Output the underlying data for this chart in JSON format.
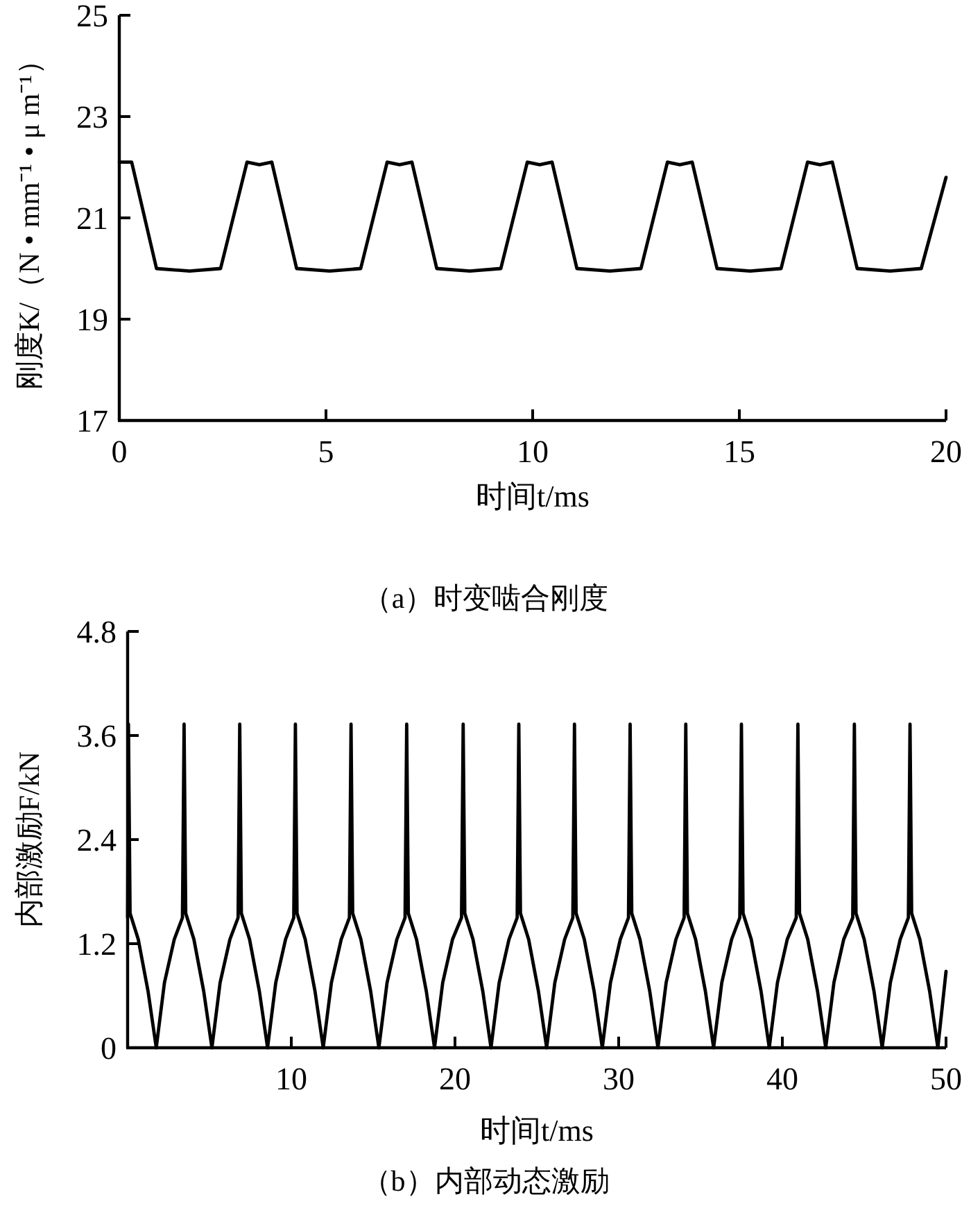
{
  "chart_data": [
    {
      "type": "line",
      "xlabel": "时间t/ms",
      "ylabel": "刚度K/（N • mm⁻¹ • μ m⁻¹）",
      "annotations": [
        "（a）时变啮合刚度"
      ],
      "xlim": [
        0,
        20
      ],
      "ylim": [
        17,
        25
      ],
      "xticks": [
        0,
        5,
        10,
        15,
        20
      ],
      "yticks": [
        17,
        19,
        21,
        23,
        25
      ],
      "grid": false,
      "marker": "none",
      "line_style": "solid",
      "series": [
        {
          "color": "#000000",
          "x": [
            0,
            0.3,
            0.9,
            1.7,
            2.45,
            3.09,
            3.39,
            3.69,
            4.29,
            5.09,
            5.84,
            6.48,
            6.78,
            7.08,
            7.68,
            8.48,
            9.23,
            9.87,
            10.17,
            10.47,
            11.07,
            11.87,
            12.62,
            13.26,
            13.56,
            13.86,
            14.46,
            15.26,
            16.01,
            16.65,
            16.95,
            17.25,
            17.85,
            18.65,
            19.4,
            20
          ],
          "values": [
            22.1,
            22.1,
            20.0,
            19.95,
            20.0,
            22.1,
            22.05,
            22.1,
            20.0,
            19.95,
            20.0,
            22.1,
            22.05,
            22.1,
            20.0,
            19.95,
            20.0,
            22.1,
            22.05,
            22.1,
            20.0,
            19.95,
            20.0,
            22.1,
            22.05,
            22.1,
            20.0,
            19.95,
            20.0,
            22.1,
            22.05,
            22.1,
            20.0,
            19.95,
            20.0,
            21.8
          ]
        }
      ]
    },
    {
      "type": "line",
      "xlabel": "时间t/ms",
      "ylabel": "内部激励F/kN",
      "annotations": [
        "（b）内部动态激励"
      ],
      "xlim": [
        0,
        50
      ],
      "ylim": [
        0,
        4.8
      ],
      "xticks": [
        10,
        20,
        30,
        40,
        50
      ],
      "yticks": [
        0,
        1.2,
        2.4,
        3.6,
        4.8
      ],
      "grid": false,
      "marker": "none",
      "line_style": "solid",
      "series": [
        {
          "color": "#000000",
          "x": [
            0,
            0.05,
            0.15,
            0.65,
            1.25,
            1.75,
            2.25,
            2.85,
            3.35,
            3.45,
            3.55,
            4.05,
            4.65,
            5.15,
            5.65,
            6.25,
            6.75,
            6.85,
            6.95,
            7.45,
            8.05,
            8.55,
            9.05,
            9.65,
            10.15,
            10.25,
            10.35,
            10.85,
            11.45,
            11.95,
            12.45,
            13.05,
            13.55,
            13.65,
            13.75,
            14.25,
            14.85,
            15.35,
            15.85,
            16.45,
            16.95,
            17.05,
            17.15,
            17.65,
            18.25,
            18.75,
            19.25,
            19.85,
            20.4,
            20.5,
            20.6,
            21.1,
            21.7,
            22.2,
            22.7,
            23.3,
            23.8,
            23.9,
            24.0,
            24.5,
            25.1,
            25.6,
            26.1,
            26.7,
            27.2,
            27.3,
            27.4,
            27.9,
            28.5,
            29.0,
            29.5,
            30.1,
            30.6,
            30.7,
            30.8,
            31.3,
            31.9,
            32.4,
            32.9,
            33.5,
            34.0,
            34.1,
            34.2,
            34.7,
            35.3,
            35.8,
            36.3,
            36.9,
            37.4,
            37.5,
            37.6,
            38.1,
            38.7,
            39.2,
            39.7,
            40.3,
            40.85,
            40.95,
            41.05,
            41.55,
            42.15,
            42.65,
            43.15,
            43.75,
            44.3,
            44.4,
            44.5,
            45.0,
            45.6,
            46.1,
            46.6,
            47.2,
            47.7,
            47.8,
            47.9,
            48.4,
            49.0,
            49.5,
            50
          ],
          "values": [
            1.5,
            3.73,
            1.55,
            1.25,
            0.65,
            0,
            0.75,
            1.25,
            1.5,
            3.73,
            1.55,
            1.25,
            0.65,
            0,
            0.75,
            1.25,
            1.5,
            3.73,
            1.55,
            1.25,
            0.65,
            0,
            0.75,
            1.25,
            1.5,
            3.73,
            1.55,
            1.25,
            0.65,
            0,
            0.75,
            1.25,
            1.5,
            3.73,
            1.55,
            1.25,
            0.65,
            0,
            0.75,
            1.25,
            1.5,
            3.73,
            1.55,
            1.25,
            0.65,
            0,
            0.75,
            1.25,
            1.5,
            3.73,
            1.55,
            1.25,
            0.65,
            0,
            0.75,
            1.25,
            1.5,
            3.73,
            1.55,
            1.25,
            0.65,
            0,
            0.75,
            1.25,
            1.5,
            3.73,
            1.55,
            1.25,
            0.65,
            0,
            0.75,
            1.25,
            1.5,
            3.73,
            1.55,
            1.25,
            0.65,
            0,
            0.75,
            1.25,
            1.5,
            3.73,
            1.55,
            1.25,
            0.65,
            0,
            0.75,
            1.25,
            1.5,
            3.73,
            1.55,
            1.25,
            0.65,
            0,
            0.75,
            1.25,
            1.5,
            3.73,
            1.55,
            1.25,
            0.65,
            0,
            0.75,
            1.25,
            1.5,
            3.73,
            1.55,
            1.25,
            0.65,
            0,
            0.75,
            1.25,
            1.5,
            3.73,
            1.55,
            1.25,
            0.65,
            0,
            0.88
          ]
        }
      ]
    }
  ]
}
